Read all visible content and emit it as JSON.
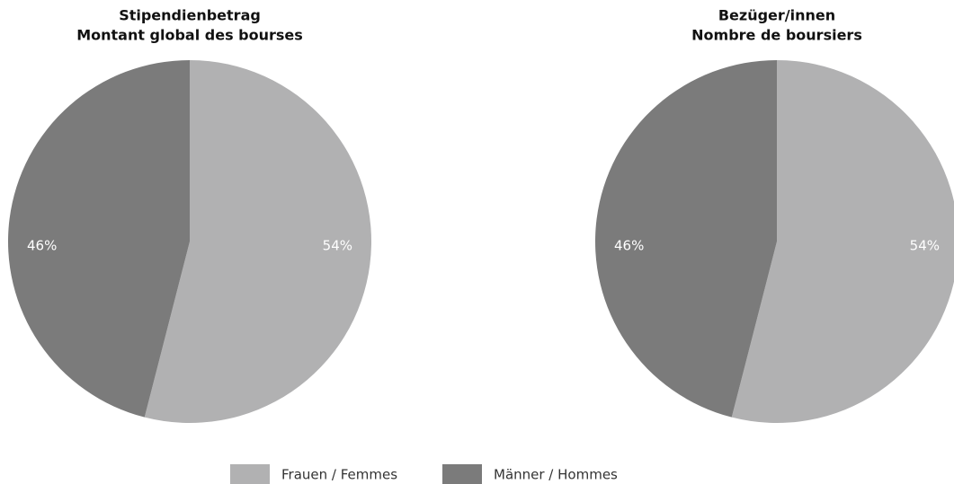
{
  "chart_data": [
    {
      "type": "pie",
      "title": "Stipendienbetrag",
      "subtitle": "Montant global des bourses",
      "categories": [
        "Frauen / Femmes",
        "Männer / Hommes"
      ],
      "values": [
        54,
        46
      ],
      "value_labels": [
        "54%",
        "46%"
      ],
      "colors": [
        "#b1b1b2",
        "#7b7b7b"
      ]
    },
    {
      "type": "pie",
      "title": "Bezüger/innen",
      "subtitle": "Nombre de boursiers",
      "categories": [
        "Frauen / Femmes",
        "Männer / Hommes"
      ],
      "values": [
        54,
        46
      ],
      "value_labels": [
        "54%",
        "46%"
      ],
      "colors": [
        "#b1b1b2",
        "#7b7b7b"
      ]
    }
  ]
}
